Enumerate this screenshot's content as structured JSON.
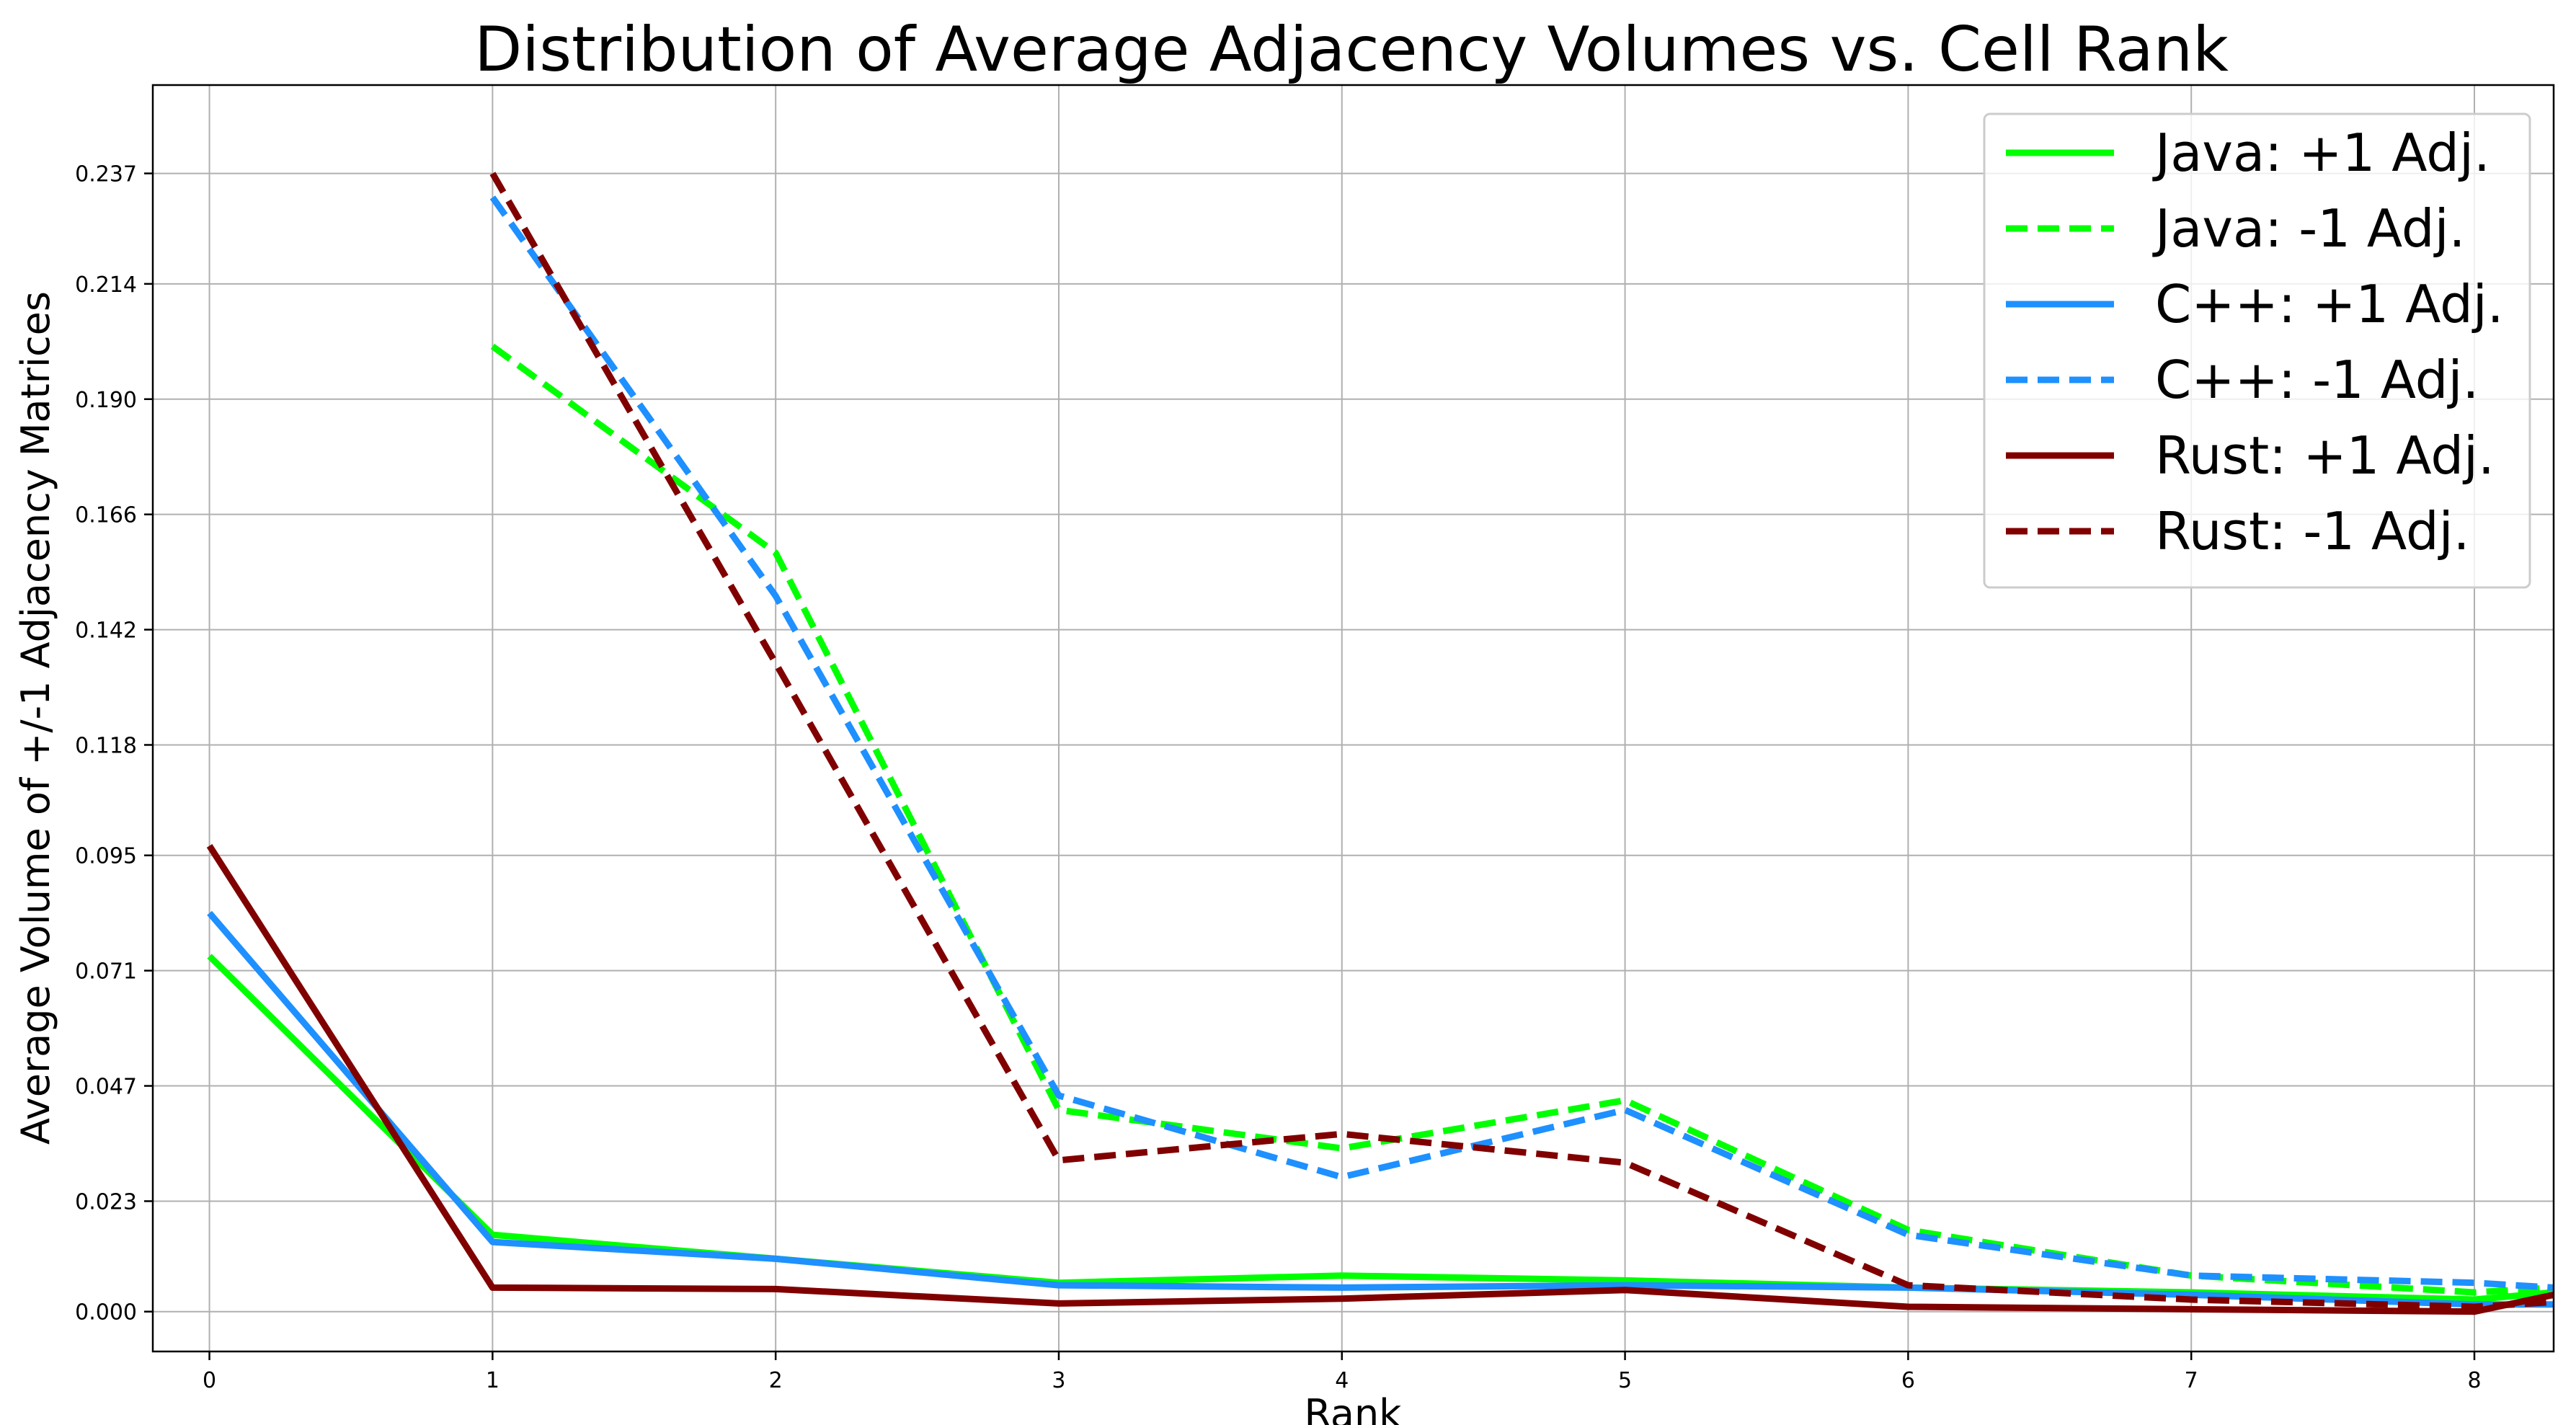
{
  "chart_data": {
    "type": "line",
    "title": "Distribution of Average Adjacency Volumes vs. Cell Rank",
    "xlabel": "Rank",
    "ylabel": "Average Volume of +/-1 Adjacency Matrices",
    "xlim": [
      -0.2,
      8.28
    ],
    "ylim": [
      -0.0083,
      0.2554
    ],
    "xticks": [
      0,
      1,
      2,
      3,
      4,
      5,
      6,
      7,
      8
    ],
    "xtick_labels": [
      "0",
      "1",
      "2",
      "3",
      "4",
      "5",
      "6",
      "7",
      "8"
    ],
    "yticks": [
      0.0,
      0.023,
      0.047,
      0.071,
      0.095,
      0.118,
      0.142,
      0.166,
      0.19,
      0.214,
      0.237
    ],
    "ytick_labels": [
      "0.000",
      "0.023",
      "0.047",
      "0.071",
      "0.095",
      "0.118",
      "0.142",
      "0.166",
      "0.190",
      "0.214",
      "0.237"
    ],
    "grid": true,
    "legend_position": "top-right",
    "series": [
      {
        "name": "Java: +1 Adj.",
        "color": "#00ff00",
        "style": "solid",
        "x": [
          0,
          1,
          2,
          3,
          4,
          5,
          6,
          7,
          8,
          8.28
        ],
        "y": [
          0.074,
          0.016,
          0.011,
          0.006,
          0.0075,
          0.0065,
          0.005,
          0.004,
          0.0025,
          0.004
        ]
      },
      {
        "name": "Java: -1 Adj.",
        "color": "#00ff00",
        "style": "dashed",
        "x": [
          1,
          2,
          3,
          4,
          5,
          6,
          7,
          8,
          8.28
        ],
        "y": [
          0.201,
          0.158,
          0.042,
          0.034,
          0.044,
          0.017,
          0.0075,
          0.004,
          0.005
        ]
      },
      {
        "name": "C++: +1 Adj.",
        "color": "#1e90ff",
        "style": "solid",
        "x": [
          0,
          1,
          2,
          3,
          4,
          5,
          6,
          7,
          8,
          8.28
        ],
        "y": [
          0.083,
          0.0145,
          0.011,
          0.0055,
          0.005,
          0.0055,
          0.005,
          0.0035,
          0.0015,
          0.0015
        ]
      },
      {
        "name": "C++: -1 Adj.",
        "color": "#1e90ff",
        "style": "dashed",
        "x": [
          1,
          2,
          3,
          4,
          5,
          6,
          7,
          8,
          8.28
        ],
        "y": [
          0.232,
          0.149,
          0.045,
          0.028,
          0.042,
          0.016,
          0.0075,
          0.006,
          0.005
        ]
      },
      {
        "name": "Rust: +1 Adj.",
        "color": "#800000",
        "style": "solid",
        "x": [
          0,
          1,
          2,
          3,
          4,
          5,
          6,
          7,
          8,
          8.28
        ],
        "y": [
          0.097,
          0.005,
          0.0047,
          0.0017,
          0.0027,
          0.0045,
          0.001,
          0.0005,
          0.0,
          0.0035
        ]
      },
      {
        "name": "Rust: -1 Adj.",
        "color": "#800000",
        "style": "dashed",
        "x": [
          1,
          2,
          3,
          4,
          5,
          6,
          7,
          8,
          8.28
        ],
        "y": [
          0.237,
          0.135,
          0.0315,
          0.037,
          0.031,
          0.0055,
          0.0025,
          0.001,
          0.002
        ]
      }
    ]
  }
}
